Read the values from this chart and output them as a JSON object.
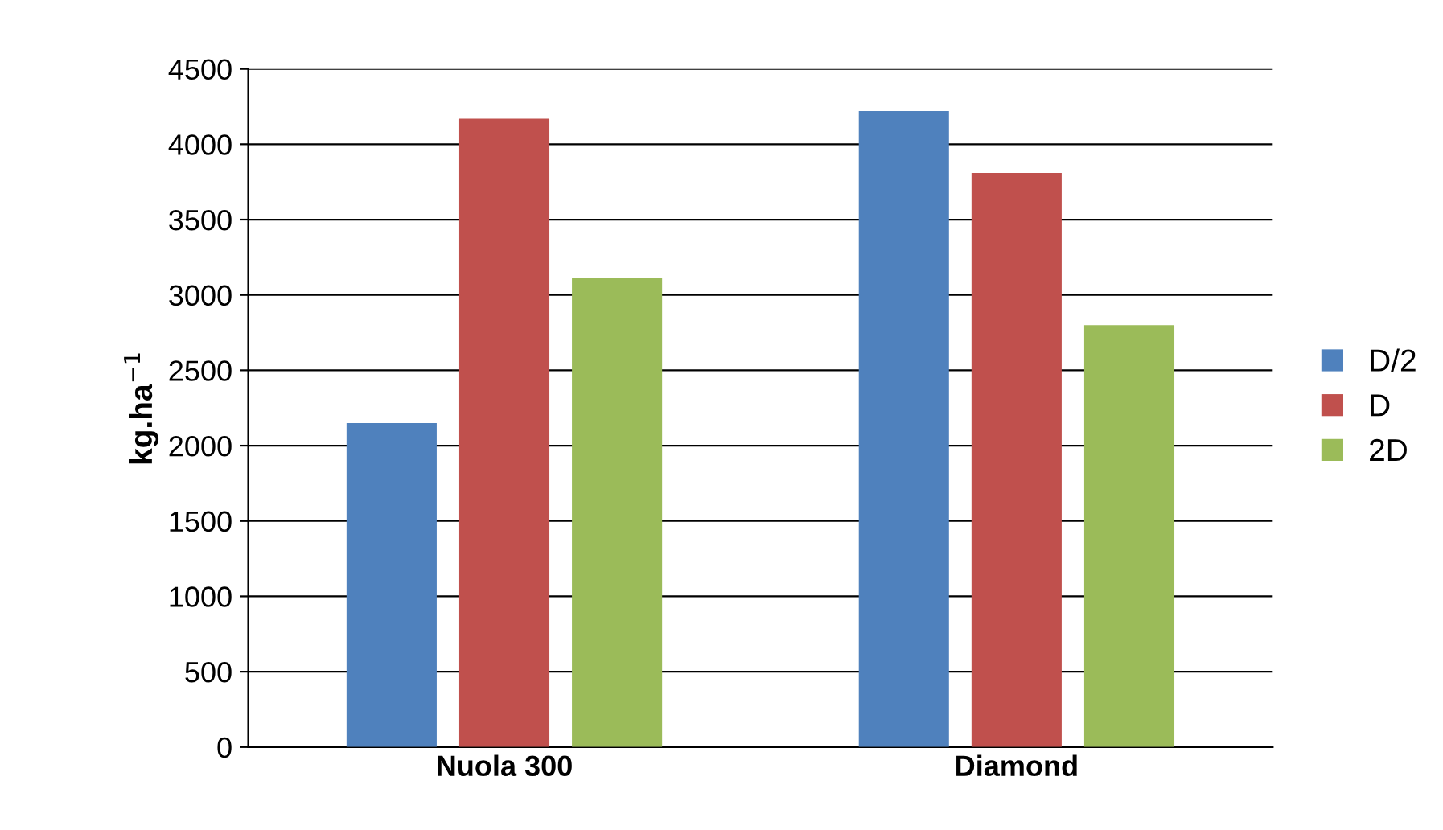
{
  "chart_data": {
    "type": "bar",
    "ylabel": "kg.ha$^{−1}$",
    "categories": [
      "Nuola 300",
      "Diamond"
    ],
    "series": [
      {
        "name": "D/2",
        "color": "#4f81bd",
        "values": [
          2150,
          4220
        ]
      },
      {
        "name": "D",
        "color": "#c0504d",
        "values": [
          4170,
          3810
        ]
      },
      {
        "name": "2D",
        "color": "#9bbb59",
        "values": [
          3110,
          2800
        ]
      }
    ],
    "ylim": [
      0,
      4500
    ],
    "yticks": [
      0,
      500,
      1000,
      1500,
      2000,
      2500,
      3000,
      3500,
      4000,
      4500
    ],
    "grid": "y",
    "legend": "right"
  }
}
